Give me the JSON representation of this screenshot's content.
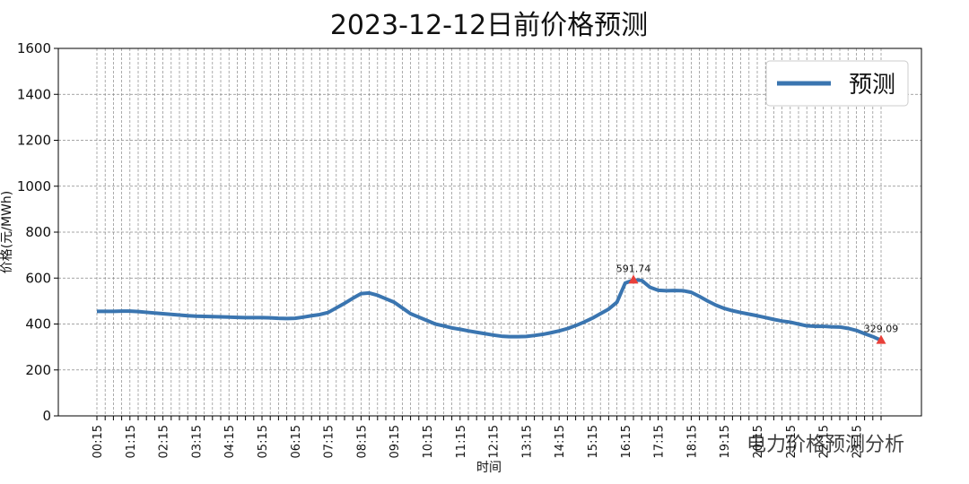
{
  "chart_data": {
    "type": "line",
    "title": "2023-12-12日前价格预测",
    "x_label": "时间",
    "y_label": "价格(元/MWh)",
    "watermark": "电力价格预测分析",
    "categories": [
      "00:15",
      null,
      null,
      null,
      "01:15",
      null,
      null,
      null,
      "02:15",
      null,
      null,
      null,
      "03:15",
      null,
      null,
      null,
      "04:15",
      null,
      null,
      null,
      "05:15",
      null,
      null,
      null,
      "06:15",
      null,
      null,
      null,
      "07:15",
      null,
      null,
      null,
      "08:15",
      null,
      null,
      null,
      "09:15",
      null,
      null,
      null,
      "10:15",
      null,
      null,
      null,
      "11:15",
      null,
      null,
      null,
      "12:15",
      null,
      null,
      null,
      "13:15",
      null,
      null,
      null,
      "14:15",
      null,
      null,
      null,
      "15:15",
      null,
      null,
      null,
      "16:15",
      null,
      null,
      null,
      "17:15",
      null,
      null,
      null,
      "18:15",
      null,
      null,
      null,
      "19:15",
      null,
      null,
      null,
      "20:15",
      null,
      null,
      null,
      "21:15",
      null,
      null,
      null,
      "22:15",
      null,
      null,
      null,
      "23:15",
      null,
      null,
      null
    ],
    "series": [
      {
        "name": "预测",
        "color": "#3a75b0",
        "values": [
          455,
          455,
          455,
          456,
          456,
          454,
          451,
          448,
          445,
          442,
          439,
          436,
          434,
          433,
          432,
          431,
          430,
          429,
          428,
          428,
          428,
          427,
          425,
          424,
          425,
          430,
          436,
          441,
          450,
          470,
          490,
          512,
          532,
          535,
          525,
          510,
          495,
          470,
          445,
          430,
          415,
          400,
          392,
          383,
          377,
          370,
          364,
          358,
          352,
          347,
          345,
          345,
          346,
          350,
          355,
          362,
          370,
          380,
          393,
          408,
          425,
          445,
          465,
          495,
          578,
          591.74,
          590,
          560,
          547,
          545,
          546,
          545,
          538,
          520,
          500,
          482,
          468,
          458,
          450,
          443,
          436,
          428,
          420,
          413,
          408,
          400,
          392,
          390,
          390,
          388,
          387,
          381,
          372,
          358,
          345,
          329.09
        ],
        "value_labels": [
          null,
          null,
          null,
          null,
          null,
          null,
          null,
          null,
          null,
          null,
          null,
          null,
          null,
          null,
          null,
          null,
          null,
          null,
          null,
          null,
          null,
          null,
          null,
          null,
          null,
          null,
          null,
          null,
          null,
          null,
          null,
          null,
          null,
          null,
          null,
          null,
          null,
          null,
          null,
          null,
          null,
          null,
          null,
          null,
          null,
          null,
          null,
          null,
          null,
          null,
          null,
          null,
          null,
          null,
          null,
          null,
          null,
          null,
          null,
          null,
          null,
          null,
          null,
          null,
          null,
          "591.74",
          null,
          null,
          null,
          null,
          null,
          null,
          null,
          null,
          null,
          null,
          null,
          null,
          null,
          null,
          null,
          null,
          null,
          null,
          null,
          null,
          null,
          null,
          null,
          null,
          null,
          null,
          null,
          null,
          null,
          "329.09"
        ],
        "marker_color": "#e8403a"
      }
    ],
    "ylim": [
      0,
      1600
    ],
    "yticks": [
      0,
      200,
      400,
      600,
      800,
      1000,
      1200,
      1400,
      1600
    ],
    "grid": true,
    "legend": "upper right"
  }
}
